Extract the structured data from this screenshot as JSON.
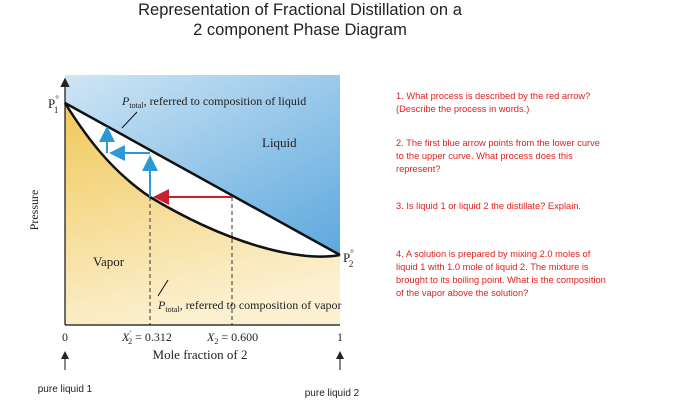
{
  "header": {
    "title_lines": [
      "Representation of Fractional Distillation on a",
      "2 component Phase Diagram"
    ]
  },
  "diagram": {
    "y_axis_label": "Pressure",
    "x_axis_label": "Mole fraction of 2",
    "x_min_label": "0",
    "x_max_label": "1",
    "p1": {
      "symbol": "P",
      "sup": "°",
      "sub": "1"
    },
    "p2": {
      "symbol": "P",
      "sup": "°",
      "sub": "2"
    },
    "liquid_curve_label": {
      "symbol": "P",
      "sub": "total",
      "text": ", referred to composition of liquid"
    },
    "vapor_curve_label": {
      "symbol": "P",
      "sub": "total",
      "text": ", referred to composition of vapor"
    },
    "liquid_region": "Liquid",
    "vapor_region": "Vapor",
    "x_vapor": {
      "symbol": "X",
      "sup": "′",
      "sub": "2",
      "text": " = 0.312"
    },
    "x_liquid": {
      "symbol": "X",
      "sub": "2",
      "text": " = 0.600"
    },
    "pure_1": "pure liquid 1",
    "pure_2": "pure liquid 2"
  },
  "questions": [
    "1. What process is described by the red arrow? (Describe the process in words.)",
    "2. The first blue arrow points from the lower curve to the upper curve. What process does this represent?",
    "3. Is liquid 1 or liquid 2 the distillate? Explain.",
    "4. A solution is prepared by mixing 2.0 moles of liquid 1 with 1.0 mole of liquid 2. The mixture is brought to its boiling point. What is the composition of the vapor above the solution?"
  ]
}
